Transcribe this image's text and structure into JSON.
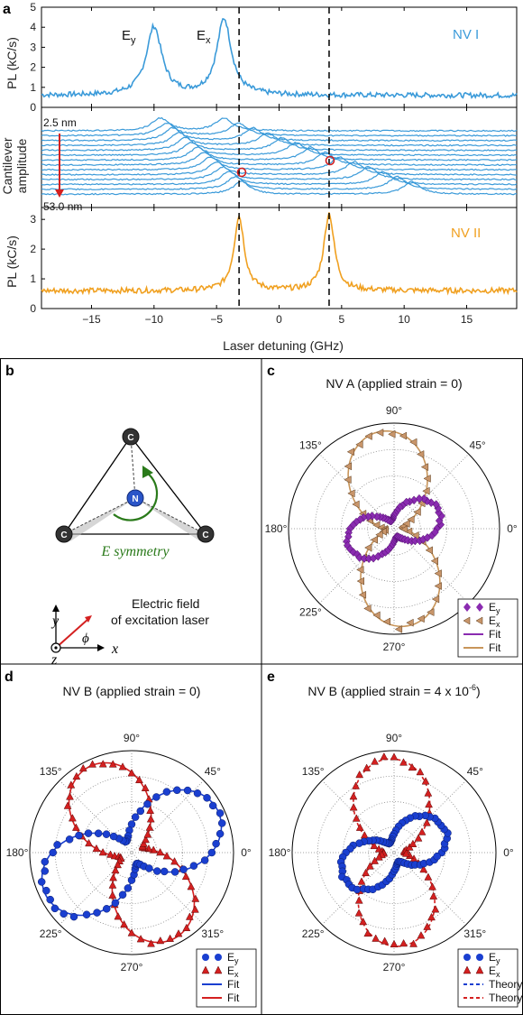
{
  "panel_a": {
    "letter": "a",
    "x_axis_label": "Laser detuning (GHz)",
    "x_ticks": [
      "−15",
      "−10",
      "−5",
      "0",
      "5",
      "10",
      "15"
    ],
    "top": {
      "ylabel": "PL (kC/s)",
      "y_ticks": [
        "0",
        "1",
        "2",
        "3",
        "4",
        "5"
      ],
      "label": "NV I",
      "ey_label": "E",
      "ey_sub": "y",
      "ex_label": "E",
      "ex_sub": "x"
    },
    "middle": {
      "ylabel_line1": "Cantilever",
      "ylabel_line2": "amplitude",
      "amp_top": "2.5 nm",
      "amp_bottom": "53.0 nm"
    },
    "bottom": {
      "ylabel": "PL (kC/s)",
      "y_ticks": [
        "0",
        "1",
        "2",
        "3"
      ],
      "label": "NV II"
    }
  },
  "panel_b": {
    "letter": "b",
    "atom_c": "C",
    "atom_n": "N",
    "symmetry_label": "E symmetry",
    "efield_line1": "Electric field",
    "efield_line2": "of excitation laser",
    "axis_x": "x",
    "axis_y": "y",
    "axis_z": "z",
    "angle_symbol": "ϕ"
  },
  "panel_c": {
    "letter": "c",
    "title": "NV A  (applied strain = 0)",
    "angles": [
      "90°",
      "45°",
      "0°",
      "315°",
      "270°",
      "225°",
      "180°",
      "135°"
    ],
    "legend": [
      {
        "label": "E",
        "sub": "y",
        "symbol": "diamond"
      },
      {
        "label": "E",
        "sub": "x",
        "symbol": "triangle-left"
      },
      {
        "label": "Fit",
        "symbol": "line"
      },
      {
        "label": "Fit",
        "symbol": "line"
      }
    ]
  },
  "panel_d": {
    "letter": "d",
    "title": "NV B  (applied strain = 0)",
    "angles": [
      "90°",
      "45°",
      "0°",
      "315°",
      "270°",
      "225°",
      "180°",
      "135°"
    ],
    "legend": [
      {
        "label": "E",
        "sub": "y",
        "symbol": "circle"
      },
      {
        "label": "E",
        "sub": "x",
        "symbol": "triangle-up"
      },
      {
        "label": "Fit",
        "symbol": "line"
      },
      {
        "label": "Fit",
        "symbol": "line"
      }
    ]
  },
  "panel_e": {
    "letter": "e",
    "title": "NV B  (applied strain = 4 x 10",
    "title_sup": "-6",
    "title_end": ")",
    "angles": [
      "90°",
      "45°",
      "0°",
      "315°",
      "270°",
      "225°",
      "180°",
      "135°"
    ],
    "legend": [
      {
        "label": "E",
        "sub": "y",
        "symbol": "circle"
      },
      {
        "label": "E",
        "sub": "x",
        "symbol": "triangle-up"
      },
      {
        "label": "Theory",
        "symbol": "dash"
      },
      {
        "label": "Theory",
        "symbol": "dash"
      }
    ]
  },
  "colors": {
    "nv1_blue": "#3a9ad9",
    "nv2_orange": "#f0a020",
    "purple": "#8a2bb0",
    "tan": "#c8956a",
    "tan_line": "#c8955a",
    "blue": "#1a3fd0",
    "red": "#d42020",
    "green": "#2a7a1a",
    "dashed_black": "#000000"
  },
  "chart_data": [
    {
      "type": "line",
      "panel": "a-top",
      "xlabel": "Laser detuning (GHz)",
      "ylabel": "PL (kC/s)",
      "xlim": [
        -19,
        19
      ],
      "ylim": [
        0,
        5
      ],
      "series": [
        {
          "name": "NV I",
          "x": [
            -19,
            -14,
            -12,
            -11,
            -10.5,
            -10,
            -9.5,
            -9,
            -8,
            -6,
            -5,
            -4.5,
            -4,
            -3.5,
            -3,
            -2,
            0,
            5,
            10,
            19
          ],
          "values": [
            0.6,
            0.65,
            0.9,
            1.8,
            3.2,
            4.0,
            3.3,
            1.8,
            0.8,
            0.9,
            2.2,
            4.2,
            4.4,
            3.0,
            1.2,
            0.7,
            0.6,
            0.6,
            0.6,
            0.6
          ]
        }
      ],
      "vlines": [
        -3.2,
        4.0
      ]
    },
    {
      "type": "line",
      "panel": "a-bottom",
      "xlabel": "Laser detuning (GHz)",
      "ylabel": "PL (kC/s)",
      "xlim": [
        -19,
        19
      ],
      "ylim": [
        0,
        3.4
      ],
      "series": [
        {
          "name": "NV II",
          "x": [
            -19,
            -10,
            -6,
            -4.5,
            -4,
            -3.5,
            -3.2,
            -2.8,
            -2.5,
            -2,
            -1,
            0,
            2,
            3,
            3.5,
            4,
            4.5,
            5,
            6,
            10,
            19
          ],
          "values": [
            0.6,
            0.6,
            0.6,
            0.8,
            1.6,
            2.6,
            3.0,
            2.5,
            1.6,
            1.0,
            0.65,
            0.6,
            0.8,
            1.8,
            2.9,
            3.2,
            2.8,
            1.6,
            0.7,
            0.6,
            0.6
          ]
        }
      ],
      "vlines": [
        -3.2,
        4.0
      ]
    }
  ]
}
